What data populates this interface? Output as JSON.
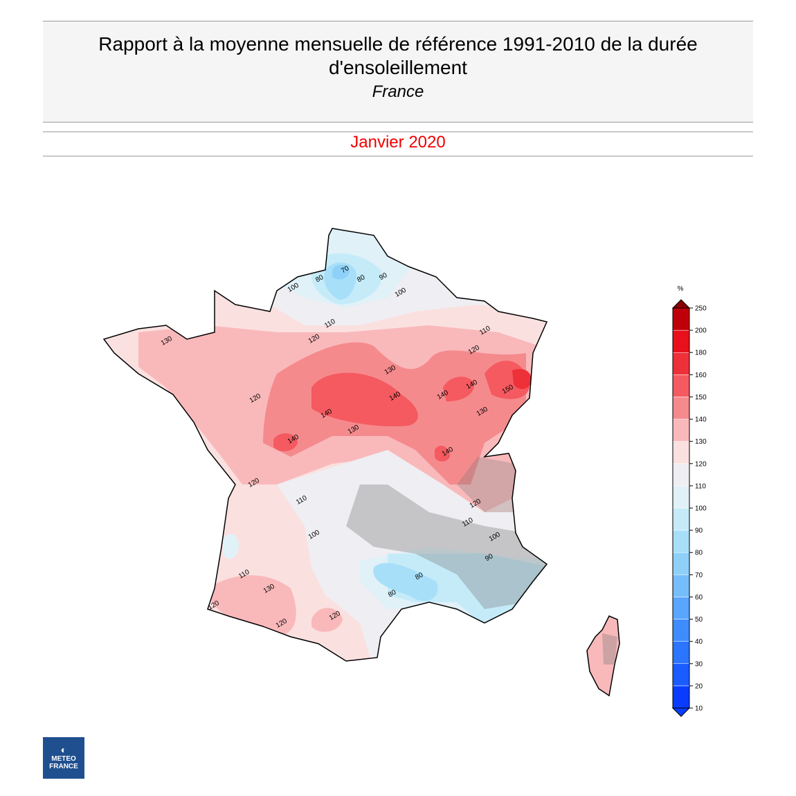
{
  "header": {
    "title": "Rapport à la moyenne mensuelle de référence 1991-2010 de la durée d'ensoleillement",
    "subtitle": "France",
    "period": "Janvier 2020"
  },
  "legend": {
    "unit": "%",
    "ticks": [
      10,
      20,
      30,
      40,
      50,
      60,
      70,
      80,
      90,
      100,
      110,
      120,
      130,
      140,
      150,
      160,
      180,
      200,
      250
    ],
    "colors": [
      "#0a3cff",
      "#1a5cff",
      "#2b75ff",
      "#3f8cff",
      "#5aa5ff",
      "#76bdfb",
      "#8fd0f8",
      "#a8dff8",
      "#c5ebf9",
      "#e0f1f8",
      "#efeef2",
      "#fbe0e0",
      "#f9b9bb",
      "#f58a8d",
      "#f45a60",
      "#ee3038",
      "#e8101b",
      "#c00008"
    ]
  },
  "map": {
    "contour_labels": [
      "70",
      "80",
      "80",
      "90",
      "100",
      "100",
      "110",
      "110",
      "120",
      "120",
      "130",
      "130",
      "120",
      "140",
      "140",
      "140",
      "140",
      "150",
      "140",
      "130",
      "130",
      "140",
      "120",
      "110",
      "100",
      "90",
      "80",
      "80",
      "110",
      "100",
      "110",
      "130",
      "120",
      "120",
      "120",
      "120"
    ]
  },
  "logo": {
    "line1": "METEO",
    "line2": "FRANCE"
  }
}
